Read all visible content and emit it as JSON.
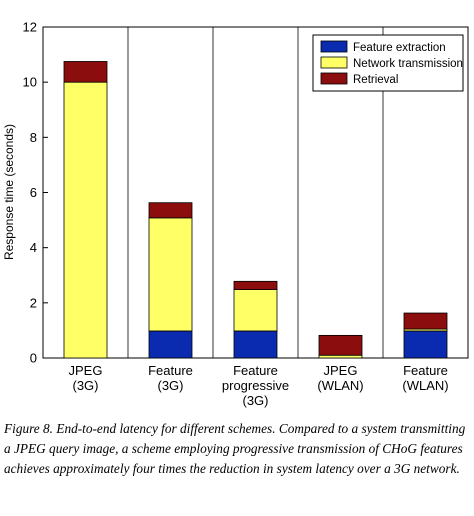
{
  "chart_data": {
    "type": "bar",
    "stacked": true,
    "categories": [
      [
        "JPEG",
        "(3G)"
      ],
      [
        "Feature",
        "(3G)"
      ],
      [
        "Feature",
        "progressive",
        "(3G)"
      ],
      [
        "JPEG",
        "(WLAN)"
      ],
      [
        "Feature",
        "(WLAN)"
      ]
    ],
    "series": [
      {
        "name": "Feature extraction",
        "color": "#0a2bb0",
        "values": [
          0,
          0.98,
          0.98,
          0,
          0.98
        ]
      },
      {
        "name": "Network transmission",
        "color": "#ffff66",
        "values": [
          10.0,
          4.1,
          1.5,
          0.1,
          0.07
        ]
      },
      {
        "name": "Retrieval",
        "color": "#8b0d0d",
        "values": [
          0.75,
          0.55,
          0.3,
          0.72,
          0.58
        ]
      }
    ],
    "ylabel": "Response time (seconds)",
    "ylim": [
      0,
      12
    ],
    "yticks": [
      0,
      2,
      4,
      6,
      8,
      10,
      12
    ],
    "grid": "vertical",
    "legend_position": "top-right"
  },
  "caption": "Figure 8. End-to-end latency for different schemes. Compared to a system transmitting a JPEG query image, a scheme employing progressive transmission of CHoG features achieves approximately four times the reduction in system latency over a 3G network."
}
